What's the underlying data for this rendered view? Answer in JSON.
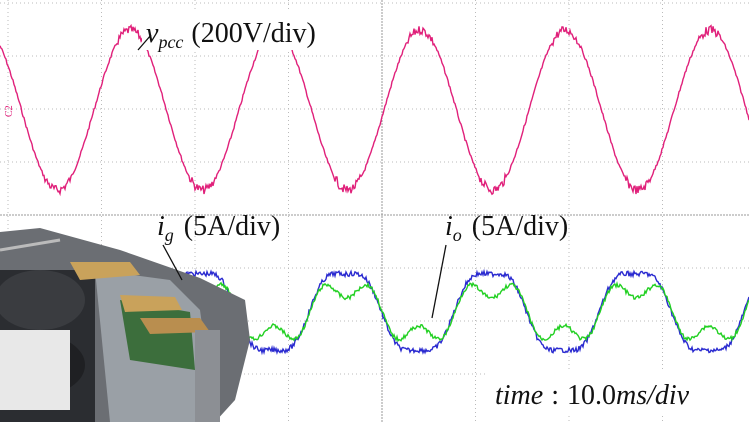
{
  "channel_marker": "C2",
  "annotations": {
    "vpcc": {
      "symbol": "v",
      "subscript": "pcc",
      "scale": "(200V/div)"
    },
    "ig": {
      "symbol": "i",
      "subscript": "g",
      "scale": "(5A/div)"
    },
    "io": {
      "symbol": "i",
      "subscript": "o",
      "scale": "(5A/div)"
    },
    "time": {
      "variable": "time",
      "separator": ":",
      "number": "10.0",
      "unit": "ms/div"
    }
  }
}
